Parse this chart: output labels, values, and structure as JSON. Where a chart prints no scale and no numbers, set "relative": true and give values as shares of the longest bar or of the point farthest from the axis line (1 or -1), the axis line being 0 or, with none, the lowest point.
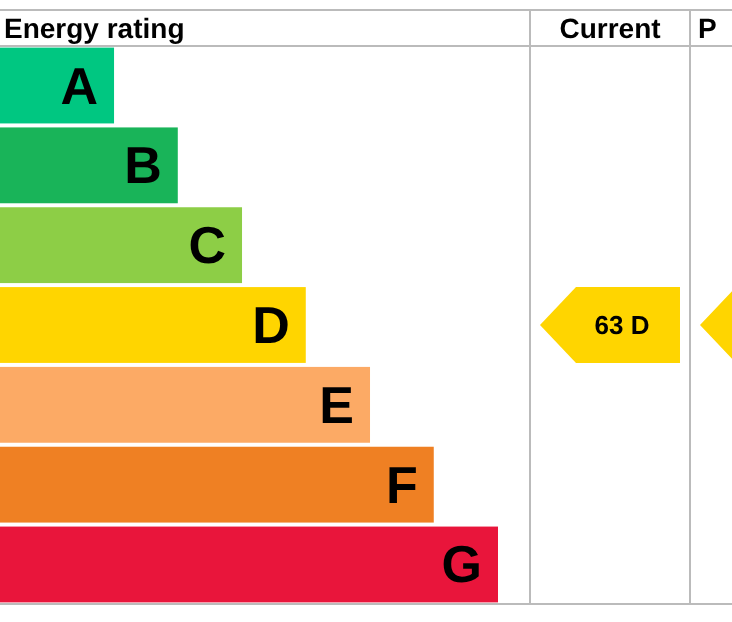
{
  "chart_data": {
    "type": "bar",
    "orientation": "horizontal",
    "relative": true,
    "categories": [
      "A",
      "B",
      "C",
      "D",
      "E",
      "F",
      "G"
    ],
    "values": [
      0.229,
      0.357,
      0.486,
      0.614,
      0.743,
      0.871,
      1
    ],
    "colors": [
      "#00c781",
      "#19b459",
      "#8dce46",
      "#ffd500",
      "#fcaa65",
      "#ef8023",
      "#e9153b"
    ],
    "legend": false,
    "annotations": [
      "Energy rating",
      "Current",
      "P",
      "63 D"
    ]
  }
}
